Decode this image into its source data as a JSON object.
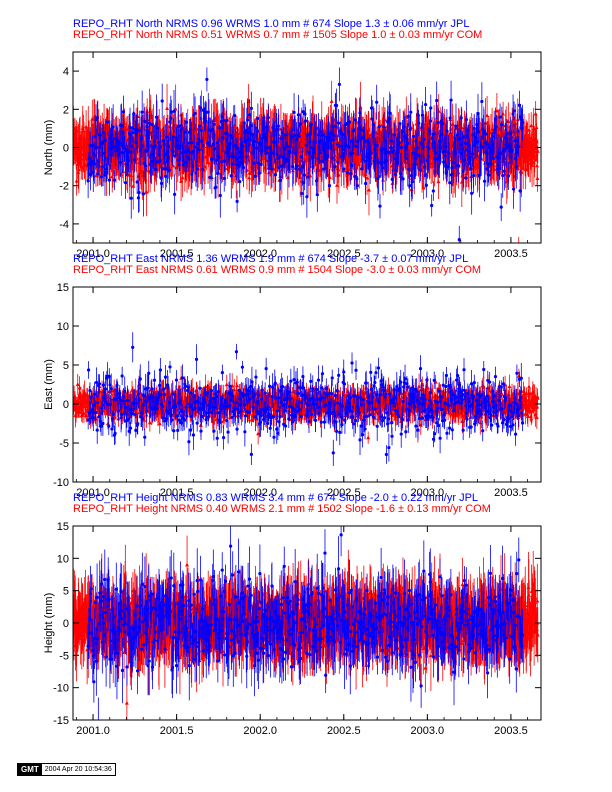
{
  "colors": {
    "jpl": "#0000ff",
    "com": "#ff0000",
    "axis": "#000000",
    "zero": "#000000"
  },
  "footer": {
    "logo": "GMT",
    "timestamp": "2004 Apr 20 10:54:36"
  },
  "chart_data": [
    {
      "type": "scatter",
      "component": "North",
      "ylabel": "North (mm)",
      "xlim": [
        2000.88,
        2003.68
      ],
      "ylim": [
        -5,
        5
      ],
      "xticks": [
        2001.0,
        2001.5,
        2002.0,
        2002.5,
        2003.0,
        2003.5
      ],
      "xtick_labels": [
        "2001.0",
        "2001.5",
        "2002.0",
        "2002.5",
        "2003.0",
        "2003.5"
      ],
      "yticks": [
        -4,
        -2,
        0,
        2,
        4
      ],
      "ytick_labels": [
        "-4",
        "-2",
        "0",
        "2",
        "4"
      ],
      "legend": [
        "REPO_RHT North NRMS 0.96 WRMS  1.0 mm # 674 Slope    1.3 ±  0.06 mm/yr JPL",
        "REPO_RHT North NRMS 0.51 WRMS  0.7 mm # 1505 Slope    1.0 ±  0.03 mm/yr COM"
      ],
      "series": [
        {
          "source": "COM",
          "n": 1505,
          "wrms": 0.7,
          "sigma": 0.9,
          "x_range": [
            2000.88,
            2003.66
          ],
          "marker": "triangle"
        },
        {
          "source": "JPL",
          "n": 674,
          "wrms": 1.0,
          "sigma": 0.8,
          "x_range": [
            2000.97,
            2003.57
          ],
          "marker": "circle"
        }
      ]
    },
    {
      "type": "scatter",
      "component": "East",
      "ylabel": "East (mm)",
      "xlim": [
        2000.88,
        2003.68
      ],
      "ylim": [
        -10,
        15
      ],
      "xticks": [
        2001.0,
        2001.5,
        2002.0,
        2002.5,
        2003.0,
        2003.5
      ],
      "xtick_labels": [
        "2001.0",
        "2001.5",
        "2002.0",
        "2002.5",
        "2003.0",
        "2003.5"
      ],
      "yticks": [
        -10,
        -5,
        0,
        5,
        10,
        15
      ],
      "ytick_labels": [
        "-10",
        "-5",
        "0",
        "5",
        "10",
        "15"
      ],
      "legend": [
        "REPO_RHT East NRMS 1.36 WRMS  1.9 mm # 674 Slope   -3.7 ±  0.07 mm/yr JPL",
        "REPO_RHT East NRMS 0.61 WRMS  0.9 mm # 1504 Slope   -3.0 ±  0.03 mm/yr COM"
      ],
      "series": [
        {
          "source": "COM",
          "n": 1504,
          "wrms": 0.9,
          "sigma": 1.1,
          "x_range": [
            2000.88,
            2003.66
          ],
          "marker": "triangle"
        },
        {
          "source": "JPL",
          "n": 674,
          "wrms": 1.9,
          "sigma": 1.3,
          "x_range": [
            2000.97,
            2003.57
          ],
          "marker": "circle"
        }
      ]
    },
    {
      "type": "scatter",
      "component": "Height",
      "ylabel": "Height (mm)",
      "xlim": [
        2000.88,
        2003.68
      ],
      "ylim": [
        -15,
        15
      ],
      "xticks": [
        2001.0,
        2001.5,
        2002.0,
        2002.5,
        2003.0,
        2003.5
      ],
      "xtick_labels": [
        "2001.0",
        "2001.5",
        "2002.0",
        "2002.5",
        "2003.0",
        "2003.5"
      ],
      "yticks": [
        -15,
        -10,
        -5,
        0,
        5,
        10,
        15
      ],
      "ytick_labels": [
        "-15",
        "-10",
        "-5",
        "0",
        "5",
        "10",
        "15"
      ],
      "legend": [
        "REPO_RHT Height NRMS 0.83 WRMS  3.4 mm # 674 Slope   -2.0 ±  0.22 mm/yr JPL",
        "REPO_RHT Height NRMS 0.40 WRMS  2.1 mm # 1502 Slope   -1.6 ±  0.13 mm/yr COM"
      ],
      "series": [
        {
          "source": "COM",
          "n": 1502,
          "wrms": 2.1,
          "sigma": 4.0,
          "x_range": [
            2000.88,
            2003.66
          ],
          "marker": "triangle"
        },
        {
          "source": "JPL",
          "n": 674,
          "wrms": 3.4,
          "sigma": 3.6,
          "x_range": [
            2000.97,
            2003.57
          ],
          "marker": "circle"
        }
      ]
    }
  ]
}
